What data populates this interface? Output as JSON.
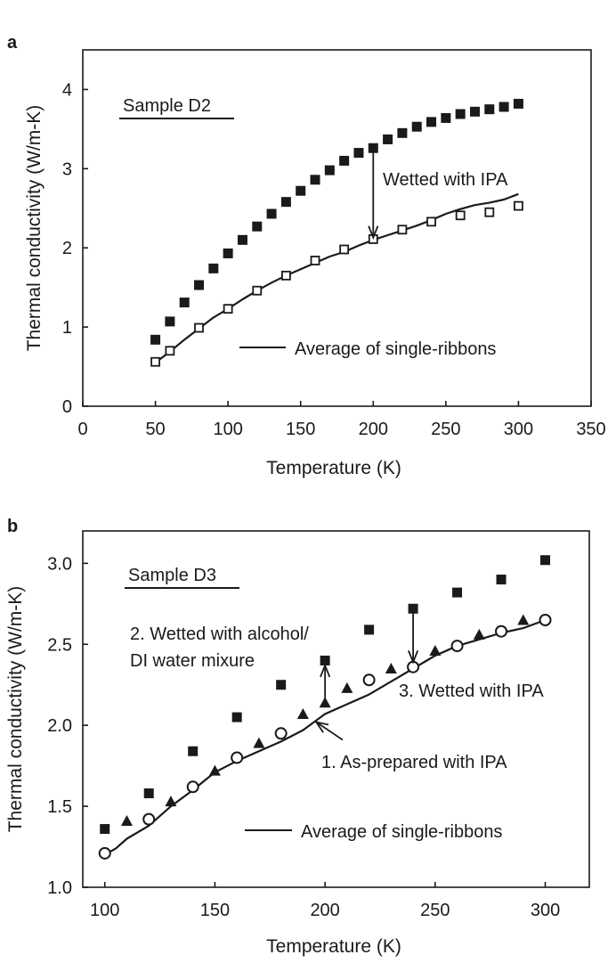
{
  "chart_data": [
    {
      "panel": "a",
      "type": "scatter",
      "xlabel": "Temperature (K)",
      "ylabel": "Thermal conductivity (W/m-K)",
      "xlim": [
        0,
        350
      ],
      "ylim": [
        0,
        4.5
      ],
      "xticks": [
        0,
        50,
        100,
        150,
        200,
        250,
        300,
        350
      ],
      "yticks": [
        0,
        1,
        2,
        3,
        4
      ],
      "grid": false,
      "sample_label": "Sample D2",
      "series": [
        {
          "marker": "filled-square",
          "x": [
            50,
            60,
            70,
            80,
            90,
            100,
            110,
            120,
            130,
            140,
            150,
            160,
            170,
            180,
            190,
            200,
            210,
            220,
            230,
            240,
            250,
            260,
            270,
            280,
            290,
            300
          ],
          "y": [
            0.84,
            1.07,
            1.31,
            1.53,
            1.74,
            1.93,
            2.1,
            2.27,
            2.43,
            2.58,
            2.72,
            2.86,
            2.98,
            3.1,
            3.2,
            3.26,
            3.37,
            3.45,
            3.53,
            3.59,
            3.64,
            3.69,
            3.72,
            3.75,
            3.78,
            3.82
          ]
        },
        {
          "marker": "open-square",
          "x": [
            50,
            60,
            80,
            100,
            120,
            140,
            160,
            180,
            200,
            220,
            240,
            260,
            280,
            300
          ],
          "y": [
            0.56,
            0.7,
            0.99,
            1.23,
            1.46,
            1.65,
            1.84,
            1.98,
            2.11,
            2.23,
            2.33,
            2.41,
            2.45,
            2.53
          ]
        },
        {
          "name": "Average of single-ribbons",
          "marker": "line",
          "x": [
            50,
            55,
            60,
            70,
            80,
            90,
            100,
            110,
            120,
            130,
            140,
            150,
            160,
            170,
            180,
            190,
            200,
            210,
            220,
            230,
            240,
            250,
            260,
            270,
            280,
            290,
            300
          ],
          "y": [
            0.55,
            0.62,
            0.69,
            0.84,
            0.98,
            1.12,
            1.23,
            1.35,
            1.46,
            1.56,
            1.65,
            1.73,
            1.81,
            1.89,
            1.95,
            2.03,
            2.1,
            2.16,
            2.22,
            2.28,
            2.35,
            2.43,
            2.49,
            2.54,
            2.57,
            2.61,
            2.68
          ]
        }
      ],
      "annotations": [
        {
          "text": "Wetted with IPA",
          "arrow_from": [
            200,
            3.24
          ],
          "arrow_to": [
            200,
            2.13
          ]
        }
      ],
      "legend": [
        {
          "text": "Average of single-ribbons",
          "marker": "line"
        }
      ]
    },
    {
      "panel": "b",
      "type": "scatter",
      "xlabel": "Temperature (K)",
      "ylabel": "Thermal conductivity (W/m-K)",
      "xlim": [
        90,
        320
      ],
      "ylim": [
        1.0,
        3.2
      ],
      "xticks": [
        100,
        150,
        200,
        250,
        300
      ],
      "yticks": [
        1.0,
        1.5,
        2.0,
        2.5,
        3.0
      ],
      "ytick_labels": [
        "1.0",
        "1.5",
        "2.0",
        "2.5",
        "3.0"
      ],
      "grid": false,
      "sample_label": "Sample D3",
      "series": [
        {
          "marker": "filled-square",
          "x": [
            100,
            120,
            140,
            160,
            180,
            200,
            220,
            240,
            260,
            280,
            300
          ],
          "y": [
            1.36,
            1.58,
            1.84,
            2.05,
            2.25,
            2.4,
            2.59,
            2.72,
            2.82,
            2.9,
            3.02
          ]
        },
        {
          "marker": "filled-triangle",
          "x": [
            110,
            130,
            150,
            170,
            190,
            200,
            210,
            230,
            250,
            270,
            290
          ],
          "y": [
            1.41,
            1.53,
            1.72,
            1.89,
            2.07,
            2.14,
            2.23,
            2.35,
            2.46,
            2.56,
            2.65
          ]
        },
        {
          "marker": "open-circle",
          "x": [
            100,
            120,
            140,
            160,
            180,
            220,
            240,
            260,
            280,
            300
          ],
          "y": [
            1.21,
            1.42,
            1.62,
            1.8,
            1.95,
            2.28,
            2.36,
            2.49,
            2.58,
            2.65
          ]
        },
        {
          "name": "Average of single-ribbons",
          "marker": "line",
          "x": [
            100,
            105,
            110,
            120,
            130,
            140,
            150,
            160,
            170,
            180,
            190,
            200,
            210,
            220,
            230,
            240,
            250,
            260,
            270,
            280,
            290,
            300
          ],
          "y": [
            1.2,
            1.24,
            1.3,
            1.38,
            1.5,
            1.6,
            1.71,
            1.78,
            1.84,
            1.9,
            1.97,
            2.07,
            2.13,
            2.19,
            2.27,
            2.35,
            2.43,
            2.49,
            2.53,
            2.57,
            2.6,
            2.65
          ]
        }
      ],
      "annotations": [
        {
          "text_lines": [
            "2. Wetted with alcohol/",
            "DI water mixure"
          ],
          "arrow_from": [
            200,
            2.13
          ],
          "arrow_to": [
            200,
            2.37
          ]
        },
        {
          "text_lines": [
            "3. Wetted with IPA"
          ],
          "arrow_from": [
            240,
            2.71
          ],
          "arrow_to": [
            240,
            2.39
          ]
        },
        {
          "text_lines": [
            "1. As-prepared with IPA"
          ],
          "arrow_from": [
            208,
            1.91
          ],
          "arrow_to": [
            196,
            2.02
          ]
        }
      ],
      "legend": [
        {
          "text": "Average of single-ribbons",
          "marker": "line"
        }
      ]
    }
  ]
}
